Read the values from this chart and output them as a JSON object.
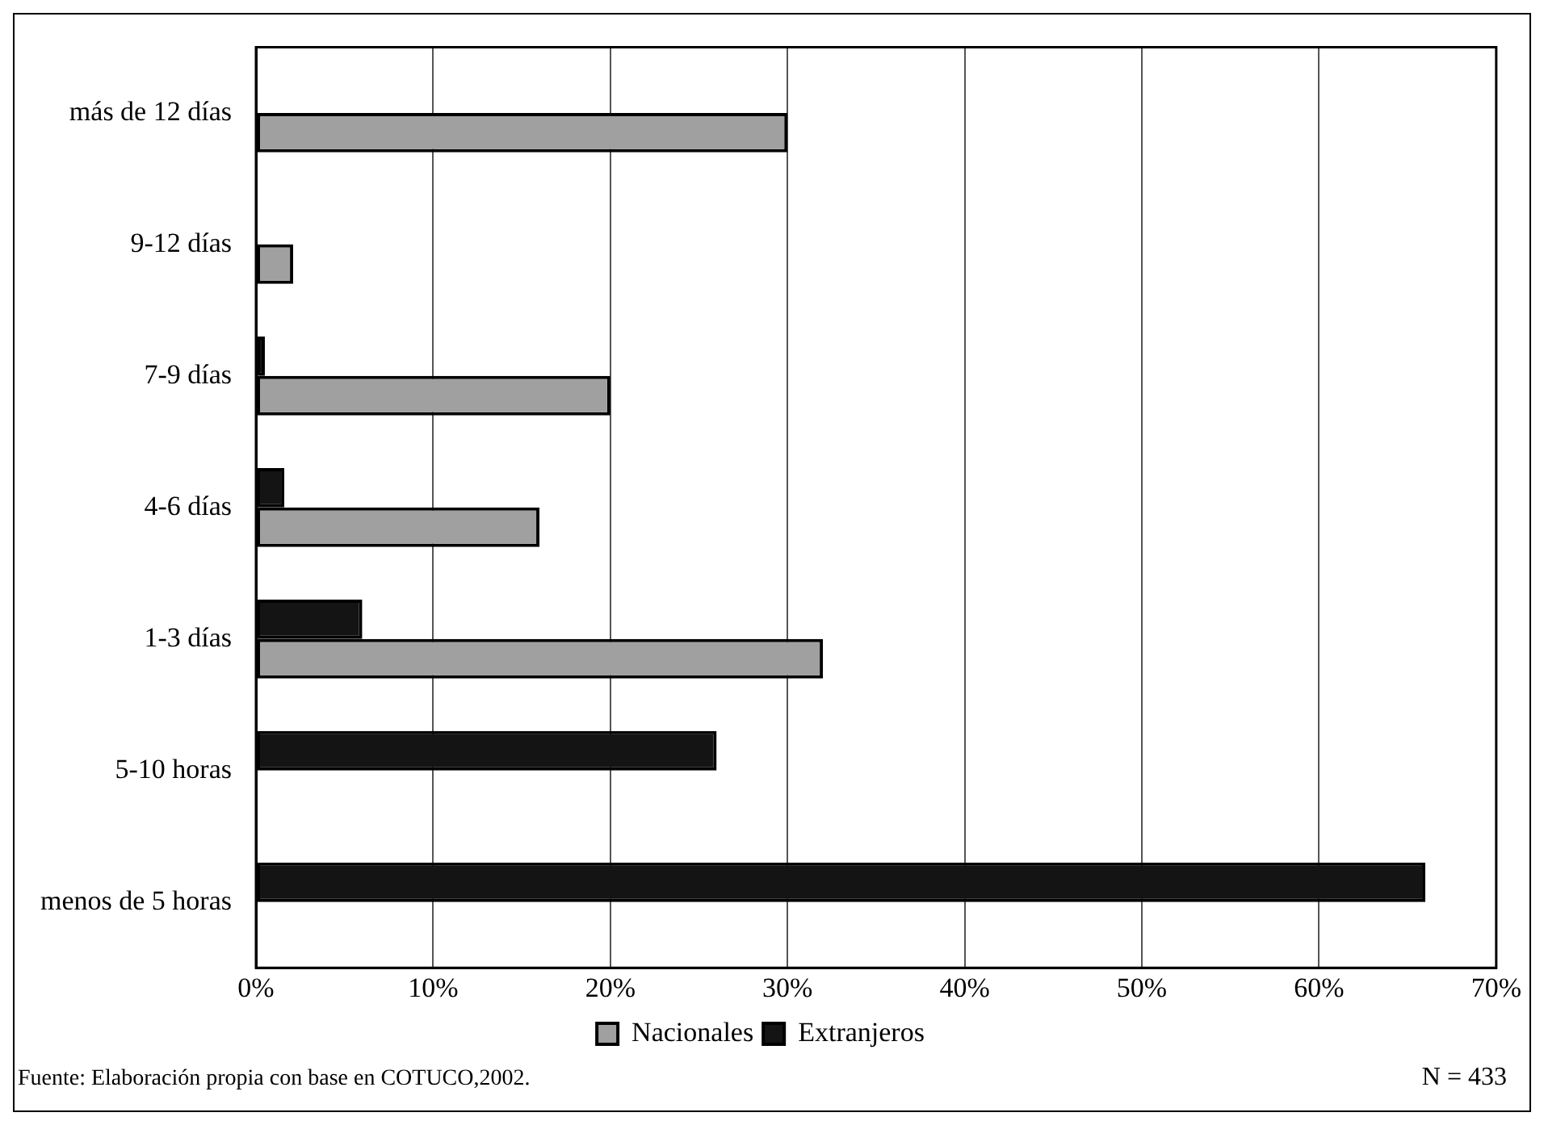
{
  "chart_data": {
    "type": "bar",
    "orientation": "horizontal",
    "categories": [
      "más de 12 días",
      "9-12 días",
      "7-9 días",
      "4-6 días",
      "1-3 días",
      "5-10 horas",
      "menos de 5 horas"
    ],
    "series": [
      {
        "name": "Nacionales",
        "color": "#a0a0a0",
        "values": [
          30,
          2.1,
          20,
          16,
          32,
          null,
          null
        ]
      },
      {
        "name": "Extranjeros",
        "color": "#141414",
        "values": [
          null,
          null,
          0.5,
          1.6,
          6,
          26,
          66
        ]
      }
    ],
    "xlim": [
      0,
      70
    ],
    "xticks": [
      {
        "value": 0,
        "label": "0%"
      },
      {
        "value": 10,
        "label": "10%"
      },
      {
        "value": 20,
        "label": "20%"
      },
      {
        "value": 30,
        "label": "30%"
      },
      {
        "value": 40,
        "label": "40%"
      },
      {
        "value": 50,
        "label": "50%"
      },
      {
        "value": 60,
        "label": "60%"
      },
      {
        "value": 70,
        "label": "70%"
      }
    ],
    "grid": "x",
    "legend": "bottom",
    "annotations": [
      "Fuente: Elaboración propia con base en COTUCO,2002.",
      "N = 433"
    ]
  }
}
